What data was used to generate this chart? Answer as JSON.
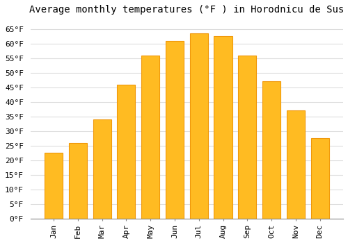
{
  "title": "Average monthly temperatures (°F ) in Horodnicu de Sus",
  "months": [
    "Jan",
    "Feb",
    "Mar",
    "Apr",
    "May",
    "Jun",
    "Jul",
    "Aug",
    "Sep",
    "Oct",
    "Nov",
    "Dec"
  ],
  "values": [
    22.5,
    26,
    34,
    46,
    56,
    61,
    63.5,
    62.5,
    56,
    47,
    37,
    27.5
  ],
  "bar_color": "#FFBB22",
  "bar_edge_color": "#F0980A",
  "background_color": "#FFFFFF",
  "grid_color": "#DDDDDD",
  "title_fontsize": 10,
  "tick_fontsize": 8,
  "ylim": [
    0,
    68
  ],
  "yticks": [
    0,
    5,
    10,
    15,
    20,
    25,
    30,
    35,
    40,
    45,
    50,
    55,
    60,
    65
  ]
}
